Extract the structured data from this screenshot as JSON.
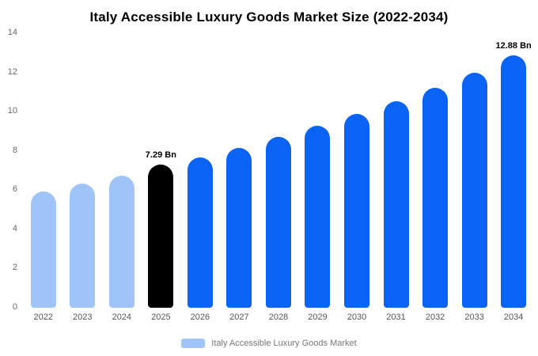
{
  "title": "Italy Accessible Luxury Goods Market Size (2022-2034)",
  "legend": {
    "label": "Italy Accessible Luxury Goods Market"
  },
  "colors": {
    "light": "#9fc5f8",
    "primary": "#0b63f5",
    "highlight": "#000000"
  },
  "chart_data": {
    "type": "bar",
    "title": "Italy Accessible Luxury Goods Market Size (2022-2034)",
    "categories": [
      "2022",
      "2023",
      "2024",
      "2025",
      "2026",
      "2027",
      "2028",
      "2029",
      "2030",
      "2031",
      "2032",
      "2033",
      "2034"
    ],
    "values": [
      5.95,
      6.33,
      6.72,
      7.29,
      7.66,
      8.15,
      8.7,
      9.3,
      9.9,
      10.55,
      11.2,
      12.0,
      12.88
    ],
    "unit": "Bn",
    "bar_colors": [
      "light",
      "light",
      "light",
      "highlight",
      "primary",
      "primary",
      "primary",
      "primary",
      "primary",
      "primary",
      "primary",
      "primary",
      "primary"
    ],
    "annotations": [
      {
        "index": 3,
        "text": "7.29 Bn"
      },
      {
        "index": 12,
        "text": "12.88 Bn"
      }
    ],
    "xlabel": "",
    "ylabel": "",
    "ylim": [
      0,
      14
    ],
    "yticks": [
      0,
      2,
      4,
      6,
      8,
      10,
      12,
      14
    ],
    "grid": false,
    "legend_position": "bottom",
    "legend_entries": [
      "Italy Accessible Luxury Goods Market"
    ]
  }
}
